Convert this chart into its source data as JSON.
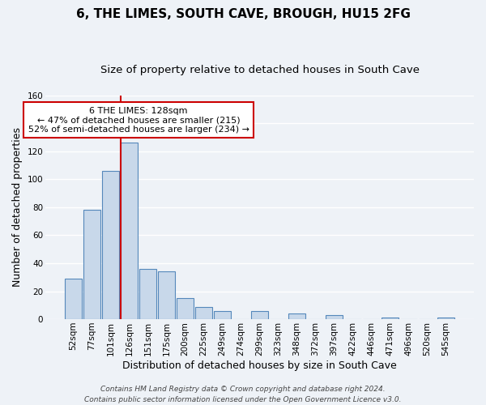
{
  "title": "6, THE LIMES, SOUTH CAVE, BROUGH, HU15 2FG",
  "subtitle": "Size of property relative to detached houses in South Cave",
  "xlabel": "Distribution of detached houses by size in South Cave",
  "ylabel": "Number of detached properties",
  "bar_labels": [
    "52sqm",
    "77sqm",
    "101sqm",
    "126sqm",
    "151sqm",
    "175sqm",
    "200sqm",
    "225sqm",
    "249sqm",
    "274sqm",
    "299sqm",
    "323sqm",
    "348sqm",
    "372sqm",
    "397sqm",
    "422sqm",
    "446sqm",
    "471sqm",
    "496sqm",
    "520sqm",
    "545sqm"
  ],
  "bar_values": [
    29,
    78,
    106,
    126,
    36,
    34,
    15,
    9,
    6,
    0,
    6,
    0,
    4,
    0,
    3,
    0,
    0,
    1,
    0,
    0,
    1
  ],
  "bar_color": "#c8d8ea",
  "bar_edge_color": "#5588bb",
  "highlight_index": 3,
  "vline_color": "#cc0000",
  "ylim": [
    0,
    160
  ],
  "yticks": [
    0,
    20,
    40,
    60,
    80,
    100,
    120,
    140,
    160
  ],
  "annotation_title": "6 THE LIMES: 128sqm",
  "annotation_line1": "← 47% of detached houses are smaller (215)",
  "annotation_line2": "52% of semi-detached houses are larger (234) →",
  "annotation_box_color": "#ffffff",
  "annotation_box_edge": "#cc0000",
  "footer_line1": "Contains HM Land Registry data © Crown copyright and database right 2024.",
  "footer_line2": "Contains public sector information licensed under the Open Government Licence v3.0.",
  "background_color": "#eef2f7",
  "grid_color": "#ffffff",
  "title_fontsize": 11,
  "subtitle_fontsize": 9.5,
  "axis_label_fontsize": 9,
  "tick_fontsize": 7.5,
  "annotation_fontsize": 8,
  "footer_fontsize": 6.5
}
